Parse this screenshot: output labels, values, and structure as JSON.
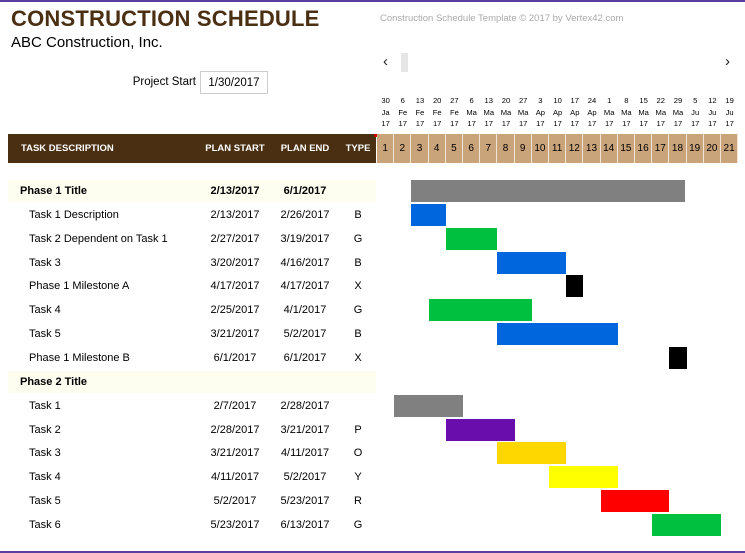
{
  "title": "CONSTRUCTION SCHEDULE",
  "company": "ABC Construction, Inc.",
  "copyright": "Construction Schedule Template © 2017 by Vertex42.com",
  "nav": {
    "prev": "‹",
    "next": "›"
  },
  "project_start": {
    "label": "Project Start",
    "value": "1/30/2017"
  },
  "columns": {
    "task": "TASK DESCRIPTION",
    "plan_start": "PLAN START",
    "plan_end": "PLAN END",
    "type": "TYPE"
  },
  "timeline": {
    "dates": [
      {
        "d": "30",
        "m": "Ja",
        "y": "17"
      },
      {
        "d": "6",
        "m": "Fe",
        "y": "17"
      },
      {
        "d": "13",
        "m": "Fe",
        "y": "17"
      },
      {
        "d": "20",
        "m": "Fe",
        "y": "17"
      },
      {
        "d": "27",
        "m": "Fe",
        "y": "17"
      },
      {
        "d": "6",
        "m": "Ma",
        "y": "17"
      },
      {
        "d": "13",
        "m": "Ma",
        "y": "17"
      },
      {
        "d": "20",
        "m": "Ma",
        "y": "17"
      },
      {
        "d": "27",
        "m": "Ma",
        "y": "17"
      },
      {
        "d": "3",
        "m": "Ap",
        "y": "17"
      },
      {
        "d": "10",
        "m": "Ap",
        "y": "17"
      },
      {
        "d": "17",
        "m": "Ap",
        "y": "17"
      },
      {
        "d": "24",
        "m": "Ap",
        "y": "17"
      },
      {
        "d": "1",
        "m": "Ma",
        "y": "17"
      },
      {
        "d": "8",
        "m": "Ma",
        "y": "17"
      },
      {
        "d": "15",
        "m": "Ma",
        "y": "17"
      },
      {
        "d": "22",
        "m": "Ma",
        "y": "17"
      },
      {
        "d": "29",
        "m": "Ma",
        "y": "17"
      },
      {
        "d": "5",
        "m": "Ju",
        "y": "17"
      },
      {
        "d": "12",
        "m": "Ju",
        "y": "17"
      },
      {
        "d": "19",
        "m": "Ju",
        "y": "17"
      }
    ],
    "periods": [
      "1",
      "2",
      "3",
      "4",
      "5",
      "6",
      "7",
      "8",
      "9",
      "10",
      "11",
      "12",
      "13",
      "14",
      "15",
      "16",
      "17",
      "18",
      "19",
      "20",
      "21"
    ]
  },
  "tasks": [
    {
      "name": "Phase 1 Title",
      "start": "2/13/2017",
      "end": "6/1/2017",
      "type": "",
      "phase": true,
      "color": "#808080",
      "bar": [
        2.0,
        17.9
      ]
    },
    {
      "name": "Task 1 Description",
      "start": "2/13/2017",
      "end": "2/26/2017",
      "type": "B",
      "phase": false,
      "color": "#0066dd",
      "bar": [
        2.0,
        4.0
      ]
    },
    {
      "name": "Task 2 Dependent on Task 1",
      "start": "2/27/2017",
      "end": "3/19/2017",
      "type": "G",
      "phase": false,
      "color": "#00c040",
      "bar": [
        4.0,
        7.0
      ]
    },
    {
      "name": "Task 3",
      "start": "3/20/2017",
      "end": "4/16/2017",
      "type": "B",
      "phase": false,
      "color": "#0066dd",
      "bar": [
        7.0,
        11.0
      ]
    },
    {
      "name": "Phase 1 Milestone A",
      "start": "4/17/2017",
      "end": "4/17/2017",
      "type": "X",
      "phase": false,
      "color": "#000000",
      "bar": [
        11.0,
        12.0
      ]
    },
    {
      "name": "Task 4",
      "start": "2/25/2017",
      "end": "4/1/2017",
      "type": "G",
      "phase": false,
      "color": "#00c040",
      "bar": [
        3.0,
        9.0
      ]
    },
    {
      "name": "Task 5",
      "start": "3/21/2017",
      "end": "5/2/2017",
      "type": "B",
      "phase": false,
      "color": "#0066dd",
      "bar": [
        7.0,
        14.0
      ]
    },
    {
      "name": "Phase 1 Milestone B",
      "start": "6/1/2017",
      "end": "6/1/2017",
      "type": "X",
      "phase": false,
      "color": "#000000",
      "bar": [
        17.0,
        18.0
      ]
    },
    {
      "name": "Phase 2 Title",
      "start": "",
      "end": "",
      "type": "",
      "phase": true,
      "color": "",
      "bar": null
    },
    {
      "name": "Task 1",
      "start": "2/7/2017",
      "end": "2/28/2017",
      "type": "",
      "phase": false,
      "color": "#808080",
      "bar": [
        1.0,
        5.0
      ]
    },
    {
      "name": "Task 2",
      "start": "2/28/2017",
      "end": "3/21/2017",
      "type": "P",
      "phase": false,
      "color": "#6a0dad",
      "bar": [
        4.0,
        8.0
      ]
    },
    {
      "name": "Task 3",
      "start": "3/21/2017",
      "end": "4/11/2017",
      "type": "O",
      "phase": false,
      "color": "#ffd700",
      "bar": [
        7.0,
        11.0
      ]
    },
    {
      "name": "Task 4",
      "start": "4/11/2017",
      "end": "5/2/2017",
      "type": "Y",
      "phase": false,
      "color": "#ffff00",
      "bar": [
        10.0,
        14.0
      ]
    },
    {
      "name": "Task 5",
      "start": "5/2/2017",
      "end": "5/23/2017",
      "type": "R",
      "phase": false,
      "color": "#ff0000",
      "bar": [
        13.0,
        17.0
      ]
    },
    {
      "name": "Task 6",
      "start": "5/23/2017",
      "end": "6/13/2017",
      "type": "G",
      "phase": false,
      "color": "#00c040",
      "bar": [
        16.0,
        20.0
      ]
    }
  ]
}
